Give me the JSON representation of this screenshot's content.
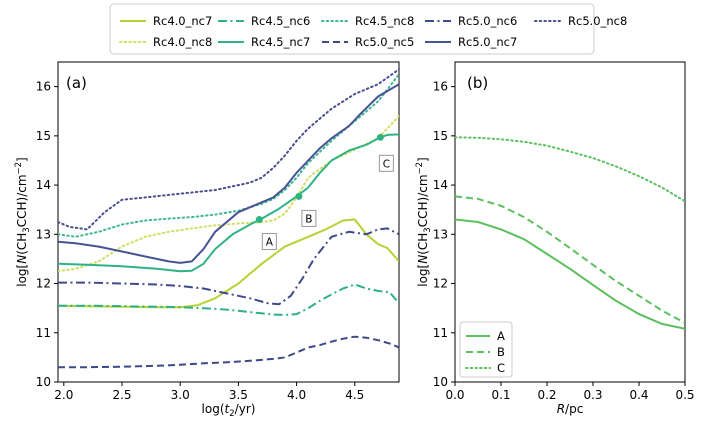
{
  "colors": {
    "nc7_40": "#b5d334",
    "nc8_40": "#d2de62",
    "nc6_45": "#2fb08a",
    "nc7_45": "#2fb382",
    "nc8_45": "#3fb790",
    "nc5_50": "#3c4a88",
    "nc6_50": "#3e4b8a",
    "nc7_50": "#465494",
    "nc8_50": "#4b4d90",
    "panel_b": "#5cc05f"
  },
  "chart_data": [
    {
      "type": "line",
      "panel_label": "(a)",
      "xlabel_prefix": "log(",
      "xlabel_var": "t",
      "xlabel_sub": "2",
      "xlabel_suffix": "/yr)",
      "ylabel_parts": [
        "log[",
        "N",
        "(CH",
        "3",
        "CCH)/cm",
        "−2",
        "]"
      ],
      "xlim": [
        1.95,
        4.88
      ],
      "ylim": [
        10,
        16.5
      ],
      "xticks": [
        "2.0",
        "2.5",
        "3.0",
        "3.5",
        "4.0",
        "4.5"
      ],
      "xtick_values": [
        2.0,
        2.5,
        3.0,
        3.5,
        4.0,
        4.5
      ],
      "yticks": [
        "10",
        "11",
        "12",
        "13",
        "14",
        "15",
        "16"
      ],
      "ytick_values": [
        10,
        11,
        12,
        13,
        14,
        15,
        16
      ],
      "series": [
        {
          "name": "Rc4.0_nc7",
          "color_key": "nc7_40",
          "dash": "solid",
          "x": [
            1.95,
            2.2,
            2.5,
            2.8,
            3.0,
            3.15,
            3.3,
            3.5,
            3.7,
            3.9,
            4.1,
            4.25,
            4.4,
            4.5,
            4.6,
            4.7,
            4.78,
            4.88
          ],
          "y": [
            11.55,
            11.54,
            11.53,
            11.52,
            11.52,
            11.56,
            11.7,
            12.0,
            12.4,
            12.75,
            12.95,
            13.1,
            13.28,
            13.3,
            13.0,
            12.8,
            12.72,
            12.45
          ]
        },
        {
          "name": "Rc4.0_nc8",
          "color_key": "nc8_40",
          "dash": "dotted",
          "x": [
            1.95,
            2.1,
            2.3,
            2.5,
            2.7,
            2.9,
            3.1,
            3.3,
            3.5,
            3.7,
            3.8,
            3.9,
            4.0,
            4.1,
            4.3,
            4.5,
            4.7,
            4.88
          ],
          "y": [
            12.25,
            12.3,
            12.45,
            12.75,
            12.95,
            13.05,
            13.12,
            13.18,
            13.22,
            13.25,
            13.28,
            13.42,
            13.75,
            14.15,
            14.5,
            14.72,
            14.95,
            15.4
          ]
        },
        {
          "name": "Rc4.5_nc6",
          "color_key": "nc6_45",
          "dash": "dashdot",
          "x": [
            1.95,
            2.2,
            2.5,
            2.8,
            3.0,
            3.2,
            3.4,
            3.6,
            3.8,
            3.9,
            4.0,
            4.1,
            4.2,
            4.3,
            4.4,
            4.5,
            4.6,
            4.7,
            4.8,
            4.88
          ],
          "y": [
            11.55,
            11.55,
            11.54,
            11.53,
            11.52,
            11.5,
            11.47,
            11.42,
            11.37,
            11.36,
            11.38,
            11.5,
            11.65,
            11.78,
            11.9,
            11.98,
            11.9,
            11.85,
            11.82,
            11.6
          ]
        },
        {
          "name": "Rc4.5_nc8",
          "color_key": "nc8_45",
          "dash": "dotted",
          "x": [
            1.95,
            2.1,
            2.3,
            2.5,
            2.7,
            2.9,
            3.1,
            3.3,
            3.5,
            3.6,
            3.7,
            3.8,
            3.9,
            4.0,
            4.1,
            4.3,
            4.5,
            4.7,
            4.88
          ],
          "y": [
            13.0,
            12.95,
            13.05,
            13.2,
            13.28,
            13.32,
            13.35,
            13.4,
            13.48,
            13.55,
            13.62,
            13.72,
            13.9,
            14.15,
            14.45,
            14.9,
            15.3,
            15.7,
            16.25
          ]
        },
        {
          "name": "Rc4.5_nc7",
          "color_key": "nc7_45",
          "dash": "solid",
          "x": [
            1.95,
            2.2,
            2.5,
            2.8,
            3.0,
            3.1,
            3.2,
            3.3,
            3.45,
            3.6,
            3.7,
            3.85,
            4.0,
            4.1,
            4.2,
            4.3,
            4.45,
            4.6,
            4.72,
            4.78,
            4.88
          ],
          "y": [
            12.4,
            12.38,
            12.35,
            12.3,
            12.25,
            12.26,
            12.4,
            12.7,
            13.0,
            13.2,
            13.32,
            13.52,
            13.77,
            13.95,
            14.25,
            14.5,
            14.7,
            14.82,
            14.97,
            15.02,
            15.03
          ]
        },
        {
          "name": "Rc5.0_nc5",
          "color_key": "nc5_50",
          "dash": "dashed",
          "x": [
            1.95,
            2.2,
            2.5,
            2.8,
            3.0,
            3.2,
            3.4,
            3.6,
            3.8,
            3.9,
            4.0,
            4.1,
            4.2,
            4.3,
            4.4,
            4.5,
            4.6,
            4.7,
            4.8,
            4.88
          ],
          "y": [
            10.3,
            10.3,
            10.31,
            10.33,
            10.35,
            10.38,
            10.4,
            10.43,
            10.47,
            10.5,
            10.6,
            10.7,
            10.75,
            10.82,
            10.88,
            10.92,
            10.9,
            10.85,
            10.78,
            10.7
          ]
        },
        {
          "name": "Rc5.0_nc6",
          "color_key": "nc6_50",
          "dash": "dashdot",
          "x": [
            1.95,
            2.2,
            2.5,
            2.8,
            3.0,
            3.2,
            3.4,
            3.6,
            3.75,
            3.85,
            3.95,
            4.05,
            4.15,
            4.3,
            4.45,
            4.6,
            4.7,
            4.78,
            4.88
          ],
          "y": [
            12.02,
            12.02,
            12.0,
            11.98,
            11.95,
            11.9,
            11.8,
            11.7,
            11.6,
            11.58,
            11.75,
            12.1,
            12.5,
            12.95,
            13.05,
            13.0,
            13.1,
            13.12,
            13.0
          ]
        },
        {
          "name": "Rc5.0_nc7",
          "color_key": "nc7_50",
          "dash": "solid",
          "x": [
            1.95,
            2.1,
            2.3,
            2.5,
            2.7,
            2.9,
            3.0,
            3.1,
            3.2,
            3.3,
            3.5,
            3.7,
            3.8,
            3.9,
            4.0,
            4.1,
            4.2,
            4.3,
            4.45,
            4.55,
            4.7,
            4.88
          ],
          "y": [
            12.85,
            12.82,
            12.75,
            12.65,
            12.55,
            12.45,
            12.42,
            12.45,
            12.7,
            13.05,
            13.45,
            13.65,
            13.75,
            13.95,
            14.25,
            14.5,
            14.75,
            14.95,
            15.2,
            15.45,
            15.8,
            16.05
          ]
        },
        {
          "name": "Rc5.0_nc8",
          "color_key": "nc8_50",
          "dash": "dotted",
          "x": [
            1.95,
            2.05,
            2.2,
            2.35,
            2.5,
            2.7,
            2.9,
            3.1,
            3.3,
            3.5,
            3.6,
            3.7,
            3.8,
            3.9,
            4.0,
            4.1,
            4.3,
            4.5,
            4.7,
            4.88
          ],
          "y": [
            13.25,
            13.15,
            13.1,
            13.45,
            13.7,
            13.75,
            13.8,
            13.85,
            13.9,
            14.0,
            14.05,
            14.15,
            14.35,
            14.6,
            14.9,
            15.15,
            15.55,
            15.85,
            16.05,
            16.35
          ]
        }
      ],
      "markers": [
        {
          "label": "A",
          "x": 3.68,
          "y": 13.3
        },
        {
          "label": "B",
          "x": 4.02,
          "y": 13.77
        },
        {
          "label": "C",
          "x": 4.72,
          "y": 14.97
        }
      ]
    },
    {
      "type": "line",
      "panel_label": "(b)",
      "xlabel_var": "R",
      "xlabel_suffix": "/pc",
      "ylabel_parts": [
        "log[",
        "N",
        "(CH",
        "3",
        "CCH)/cm",
        "−2",
        "]"
      ],
      "xlim": [
        0.0,
        0.5
      ],
      "ylim": [
        10,
        16.5
      ],
      "xticks": [
        "0.0",
        "0.1",
        "0.2",
        "0.3",
        "0.4",
        "0.5"
      ],
      "xtick_values": [
        0.0,
        0.1,
        0.2,
        0.3,
        0.4,
        0.5
      ],
      "yticks": [
        "10",
        "11",
        "12",
        "13",
        "14",
        "15",
        "16"
      ],
      "ytick_values": [
        10,
        11,
        12,
        13,
        14,
        15,
        16
      ],
      "series": [
        {
          "name": "A",
          "dash": "solid",
          "x": [
            0,
            0.05,
            0.1,
            0.15,
            0.2,
            0.25,
            0.3,
            0.35,
            0.4,
            0.45,
            0.5
          ],
          "y": [
            13.3,
            13.25,
            13.1,
            12.9,
            12.6,
            12.3,
            11.97,
            11.65,
            11.38,
            11.18,
            11.08
          ]
        },
        {
          "name": "B",
          "dash": "dashed",
          "x": [
            0,
            0.05,
            0.1,
            0.15,
            0.2,
            0.25,
            0.3,
            0.35,
            0.4,
            0.45,
            0.5
          ],
          "y": [
            13.77,
            13.72,
            13.58,
            13.35,
            13.05,
            12.72,
            12.38,
            12.05,
            11.75,
            11.45,
            11.2
          ]
        },
        {
          "name": "C",
          "dash": "dotted",
          "x": [
            0,
            0.05,
            0.1,
            0.15,
            0.2,
            0.25,
            0.3,
            0.35,
            0.4,
            0.45,
            0.5
          ],
          "y": [
            14.97,
            14.96,
            14.93,
            14.88,
            14.8,
            14.68,
            14.55,
            14.38,
            14.18,
            13.95,
            13.67
          ]
        }
      ]
    }
  ]
}
